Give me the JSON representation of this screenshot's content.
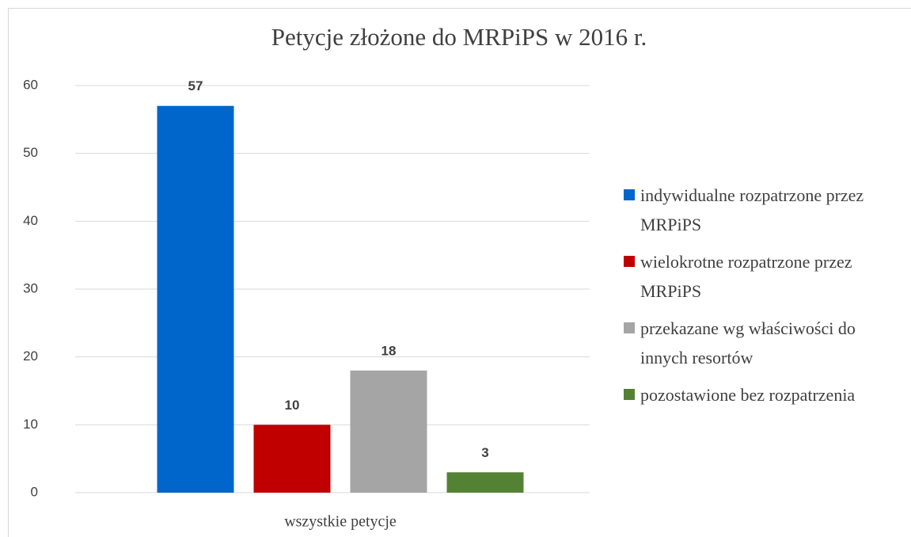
{
  "chart_data": {
    "type": "bar",
    "title": "Petycje złożone do MRPiPS w 2016 r.",
    "categories": [
      "wszystkie petycje"
    ],
    "series": [
      {
        "name": "indywidualne rozpatrzone przez MRPiPS",
        "color": "#0066cc",
        "values": [
          57
        ]
      },
      {
        "name": "wielokrotne rozpatrzone przez MRPiPS",
        "color": "#c00000",
        "values": [
          10
        ]
      },
      {
        "name": "przekazane wg właściwości do innych resortów",
        "color": "#a5a5a5",
        "values": [
          18
        ]
      },
      {
        "name": "pozostawione bez rozpatrzenia",
        "color": "#548235",
        "values": [
          3
        ]
      }
    ],
    "ylim": [
      0,
      60
    ],
    "yticks": [
      0,
      10,
      20,
      30,
      40,
      50,
      60
    ],
    "grid": true,
    "legend": "right"
  }
}
